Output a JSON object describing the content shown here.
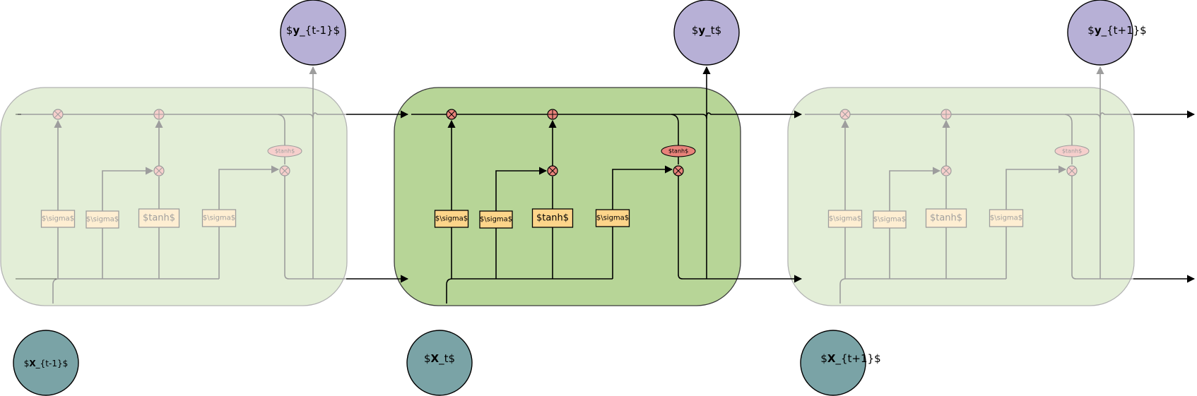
{
  "cells": [
    {
      "id": "t-1",
      "gate_labels": [
        "$\\sigma$",
        "$\\sigma$",
        "$tanh$",
        "$\\sigma$"
      ],
      "cell_tanh_label": "$tanh$",
      "faded": true
    },
    {
      "id": "t",
      "gate_labels": [
        "$\\sigma$",
        "$\\sigma$",
        "$tanh$",
        "$\\sigma$"
      ],
      "cell_tanh_label": "$tanh$",
      "faded": false
    },
    {
      "id": "t+1",
      "gate_labels": [
        "$\\sigma$",
        "$\\sigma$",
        "$tanh$",
        "$\\sigma$"
      ],
      "cell_tanh_label": "$tanh$",
      "faded": true
    }
  ],
  "inputs": [
    {
      "prefix": "$",
      "bold": "X",
      "suffix": "_{t-1}$"
    },
    {
      "prefix": "$",
      "bold": "X",
      "suffix": "_t$"
    },
    {
      "prefix": "$",
      "bold": "X",
      "suffix": "_{t+1}$"
    }
  ],
  "outputs": [
    {
      "prefix": "$",
      "bold": "y",
      "suffix": "_{t-1}$"
    },
    {
      "prefix": "$",
      "bold": "y",
      "suffix": "_t$"
    },
    {
      "prefix": "$",
      "bold": "y",
      "suffix": "_{t+1}$"
    }
  ],
  "colors": {
    "cell_fill": "#b7d597",
    "output_node": "#b7b0d6",
    "input_node": "#7aa3a6",
    "gate_fill": "#fdd58a",
    "operator_fill": "#e8837a",
    "tanh_oval": "#e8837a"
  }
}
